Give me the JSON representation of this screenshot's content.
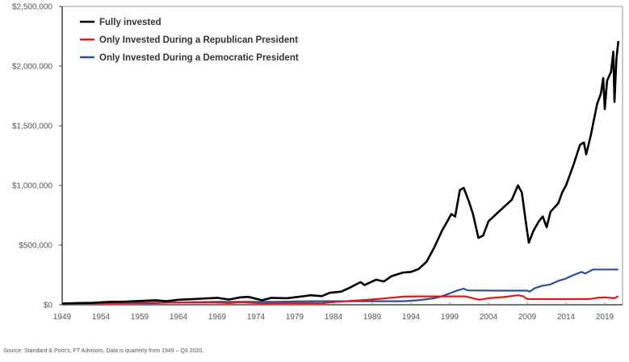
{
  "chart_data": {
    "type": "line",
    "title": "",
    "xlabel": "",
    "ylabel": "",
    "xlim": [
      1949,
      2021
    ],
    "ylim": [
      0,
      2500000
    ],
    "grid": false,
    "legend_position": "top-left",
    "x_ticks": [
      1949,
      1954,
      1959,
      1964,
      1969,
      1974,
      1979,
      1984,
      1989,
      1994,
      1999,
      2004,
      2009,
      2014,
      2019
    ],
    "y_ticks": [
      {
        "value": 0,
        "label": "$0"
      },
      {
        "value": 500000,
        "label": "$500,000"
      },
      {
        "value": 1000000,
        "label": "$1,000,000"
      },
      {
        "value": 1500000,
        "label": "$1,500,000"
      },
      {
        "value": 2000000,
        "label": "$2,000,000"
      },
      {
        "value": 2500000,
        "label": "$2,500,000"
      }
    ],
    "series": [
      {
        "name": "Fully invested",
        "color": "#000000",
        "points": [
          [
            1949,
            10000
          ],
          [
            1951,
            14000
          ],
          [
            1953,
            16000
          ],
          [
            1955,
            24000
          ],
          [
            1957,
            26000
          ],
          [
            1959,
            32000
          ],
          [
            1961,
            38000
          ],
          [
            1962.5,
            30000
          ],
          [
            1964,
            42000
          ],
          [
            1966,
            48000
          ],
          [
            1968,
            55000
          ],
          [
            1969,
            58000
          ],
          [
            1970.5,
            44000
          ],
          [
            1972,
            62000
          ],
          [
            1973,
            66000
          ],
          [
            1974.8,
            38000
          ],
          [
            1976,
            58000
          ],
          [
            1978,
            55000
          ],
          [
            1980,
            70000
          ],
          [
            1981,
            80000
          ],
          [
            1982.5,
            72000
          ],
          [
            1983.5,
            100000
          ],
          [
            1985,
            110000
          ],
          [
            1986,
            140000
          ],
          [
            1987.5,
            190000
          ],
          [
            1988,
            165000
          ],
          [
            1989.5,
            210000
          ],
          [
            1990.5,
            195000
          ],
          [
            1991.5,
            240000
          ],
          [
            1993,
            270000
          ],
          [
            1994,
            275000
          ],
          [
            1995,
            300000
          ],
          [
            1996,
            360000
          ],
          [
            1997,
            480000
          ],
          [
            1998,
            620000
          ],
          [
            1998.7,
            700000
          ],
          [
            1999.2,
            760000
          ],
          [
            1999.7,
            740000
          ],
          [
            2000.3,
            960000
          ],
          [
            2000.8,
            980000
          ],
          [
            2001.5,
            860000
          ],
          [
            2002,
            760000
          ],
          [
            2002.7,
            560000
          ],
          [
            2003.3,
            580000
          ],
          [
            2004,
            700000
          ],
          [
            2005,
            760000
          ],
          [
            2006,
            820000
          ],
          [
            2007,
            880000
          ],
          [
            2007.8,
            1000000
          ],
          [
            2008.3,
            940000
          ],
          [
            2008.8,
            700000
          ],
          [
            2009.2,
            520000
          ],
          [
            2009.8,
            620000
          ],
          [
            2010.5,
            700000
          ],
          [
            2011,
            740000
          ],
          [
            2011.5,
            650000
          ],
          [
            2012,
            780000
          ],
          [
            2013,
            850000
          ],
          [
            2013.5,
            940000
          ],
          [
            2014,
            1000000
          ],
          [
            2015,
            1180000
          ],
          [
            2015.8,
            1340000
          ],
          [
            2016.3,
            1360000
          ],
          [
            2016.6,
            1260000
          ],
          [
            2017.2,
            1420000
          ],
          [
            2018,
            1680000
          ],
          [
            2018.5,
            1770000
          ],
          [
            2018.8,
            1900000
          ],
          [
            2019,
            1640000
          ],
          [
            2019.3,
            1880000
          ],
          [
            2019.8,
            1950000
          ],
          [
            2020.1,
            2120000
          ],
          [
            2020.25,
            1700000
          ],
          [
            2020.5,
            2060000
          ],
          [
            2020.75,
            2210000
          ]
        ]
      },
      {
        "name": "Only Invested During a Republican President",
        "color": "#e2171c",
        "points": [
          [
            1949,
            10000
          ],
          [
            1953,
            10000
          ],
          [
            1955,
            14000
          ],
          [
            1957,
            15000
          ],
          [
            1960,
            18000
          ],
          [
            1961,
            18000
          ],
          [
            1969,
            18000
          ],
          [
            1970.5,
            14000
          ],
          [
            1972,
            20000
          ],
          [
            1974.8,
            12000
          ],
          [
            1977,
            14000
          ],
          [
            1981,
            14000
          ],
          [
            1982.5,
            12000
          ],
          [
            1984,
            22000
          ],
          [
            1986,
            32000
          ],
          [
            1988,
            40000
          ],
          [
            1990,
            50000
          ],
          [
            1992,
            62000
          ],
          [
            1993,
            68000
          ],
          [
            1995,
            70000
          ],
          [
            1998,
            70000
          ],
          [
            2001,
            70000
          ],
          [
            2002,
            55000
          ],
          [
            2002.8,
            42000
          ],
          [
            2004,
            55000
          ],
          [
            2006,
            65000
          ],
          [
            2007.8,
            80000
          ],
          [
            2008.5,
            70000
          ],
          [
            2009,
            48000
          ],
          [
            2012,
            47000
          ],
          [
            2015,
            47000
          ],
          [
            2017,
            48000
          ],
          [
            2018,
            58000
          ],
          [
            2019,
            62000
          ],
          [
            2020.25,
            55000
          ],
          [
            2020.75,
            72000
          ]
        ]
      },
      {
        "name": "Only Invested During a Democratic President",
        "color": "#2e4f9a",
        "points": [
          [
            1949,
            10000
          ],
          [
            1953,
            14000
          ],
          [
            1955,
            14000
          ],
          [
            1961,
            14000
          ],
          [
            1963,
            18000
          ],
          [
            1966,
            22000
          ],
          [
            1969,
            24000
          ],
          [
            1977,
            24000
          ],
          [
            1979,
            28000
          ],
          [
            1981,
            30000
          ],
          [
            1989,
            30000
          ],
          [
            1993,
            30000
          ],
          [
            1995,
            38000
          ],
          [
            1997,
            55000
          ],
          [
            1998,
            72000
          ],
          [
            1999,
            95000
          ],
          [
            2000,
            120000
          ],
          [
            2000.8,
            135000
          ],
          [
            2001.3,
            120000
          ],
          [
            2005,
            118000
          ],
          [
            2009,
            118000
          ],
          [
            2009.3,
            110000
          ],
          [
            2010,
            140000
          ],
          [
            2011,
            160000
          ],
          [
            2012,
            170000
          ],
          [
            2013,
            200000
          ],
          [
            2014,
            220000
          ],
          [
            2015,
            250000
          ],
          [
            2016,
            275000
          ],
          [
            2016.5,
            262000
          ],
          [
            2017.3,
            290000
          ],
          [
            2017.5,
            295000
          ],
          [
            2020.75,
            295000
          ]
        ]
      }
    ]
  },
  "legend": [
    {
      "label": "Fully invested",
      "color": "#000000"
    },
    {
      "label": "Only Invested During a Republican President",
      "color": "#e2171c"
    },
    {
      "label": "Only Invested During a Democratic President",
      "color": "#2e4f9a"
    }
  ],
  "source_note": "Source: Standard & Poor's, FT Advisors. Data is quarterly from 1949 – Q3 2020."
}
